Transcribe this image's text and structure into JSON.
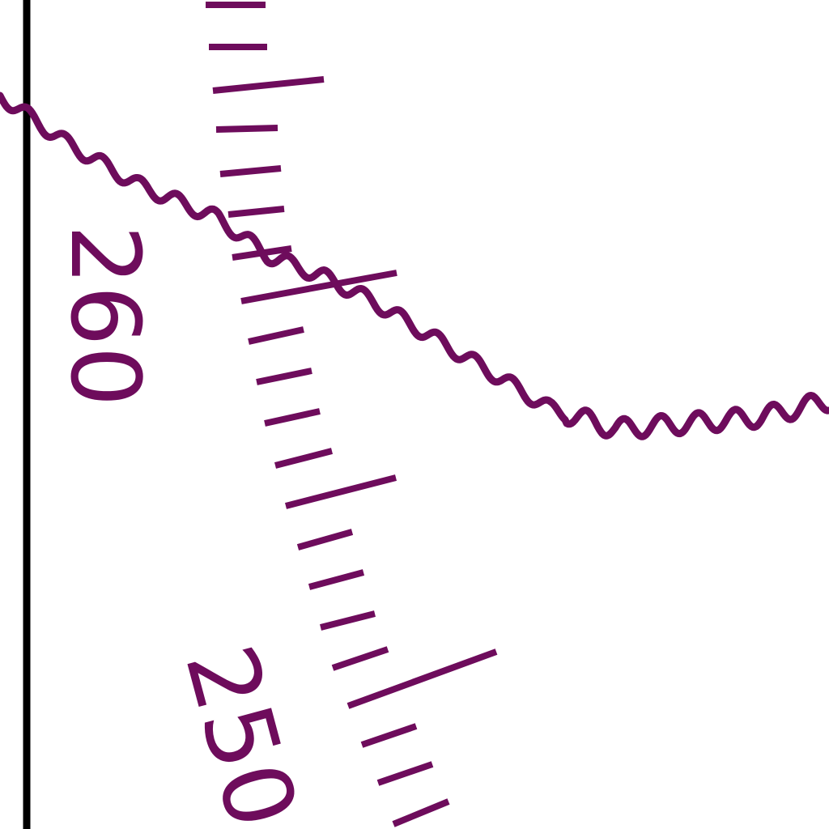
{
  "map": {
    "colors": {
      "background": "#ffffff",
      "feature": "#6e0c5c",
      "border": "#000000"
    },
    "scale": {
      "labels": [
        {
          "text": "260",
          "value": 260
        },
        {
          "text": "250",
          "value": 250
        }
      ]
    }
  }
}
